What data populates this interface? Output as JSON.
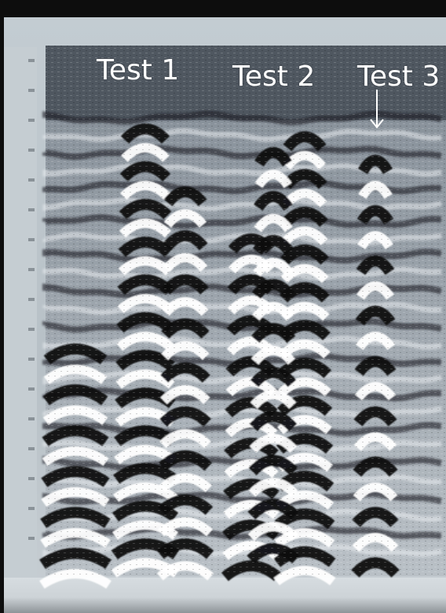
{
  "labels": {
    "test1": "Test 1",
    "test2": "Test 2",
    "test3": "Test 3"
  },
  "arrow": {
    "icon": "down-arrow-icon",
    "color": "#ffffff"
  },
  "colors": {
    "background": "#0d0d0d",
    "screen": "#c3ccd2",
    "radargram_base": "#8e98a2"
  }
}
